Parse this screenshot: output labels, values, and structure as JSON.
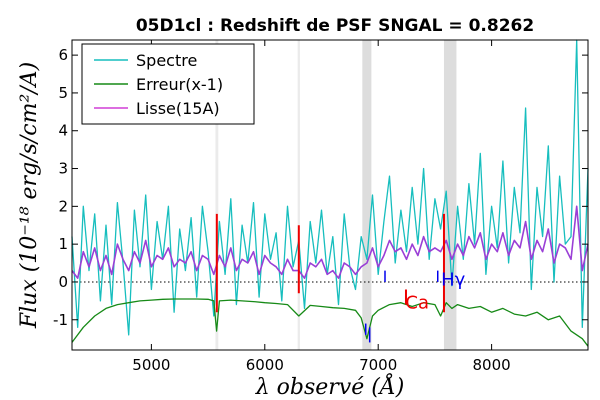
{
  "chart_data": {
    "type": "line",
    "title": "05D1cl : Redshift de PSF SNGAL = 0.8262",
    "xlabel": "λ observé (Å)",
    "ylabel": "Flux (10⁻¹⁸ erg/s/cm²/A)",
    "xlim": [
      4300,
      8850
    ],
    "ylim": [
      -1.8,
      6.4
    ],
    "xticks": [
      5000,
      6000,
      7000,
      8000
    ],
    "yticks": [
      -1,
      0,
      1,
      2,
      3,
      4,
      5,
      6
    ],
    "grid": false,
    "legend_position": "top-left",
    "zero_line": true,
    "colors": {
      "spectre": "#17bebe",
      "erreur": "#178a17",
      "lisse": "#9a3fd6",
      "sky_band": "#dddddd",
      "line_marker": "#0000ee",
      "sky_line": "#ee0000"
    },
    "series": [
      {
        "name": "Spectre",
        "color": "#17bebe",
        "x": [
          4300,
          4350,
          4400,
          4450,
          4500,
          4550,
          4600,
          4650,
          4700,
          4750,
          4800,
          4850,
          4900,
          4950,
          5000,
          5050,
          5100,
          5150,
          5200,
          5250,
          5300,
          5350,
          5400,
          5450,
          5500,
          5550,
          5600,
          5650,
          5700,
          5750,
          5800,
          5850,
          5900,
          5950,
          6000,
          6050,
          6100,
          6150,
          6200,
          6250,
          6300,
          6350,
          6400,
          6450,
          6500,
          6550,
          6600,
          6650,
          6700,
          6750,
          6800,
          6850,
          6900,
          6950,
          7000,
          7050,
          7100,
          7150,
          7200,
          7250,
          7300,
          7350,
          7400,
          7450,
          7500,
          7550,
          7600,
          7650,
          7700,
          7750,
          7800,
          7850,
          7900,
          7950,
          8000,
          8050,
          8100,
          8150,
          8200,
          8250,
          8300,
          8350,
          8400,
          8450,
          8500,
          8550,
          8600,
          8650,
          8700,
          8750,
          8800,
          8850
        ],
        "y": [
          1.2,
          -1.2,
          2.0,
          0.3,
          1.8,
          -0.5,
          1.5,
          -0.6,
          2.1,
          0.5,
          -1.4,
          1.9,
          0.4,
          2.3,
          -0.2,
          1.6,
          0.6,
          2.0,
          -0.8,
          1.4,
          0.3,
          1.7,
          -0.4,
          2.0,
          0.8,
          -0.9,
          1.6,
          0.2,
          2.2,
          -0.6,
          1.5,
          0.5,
          2.1,
          -0.4,
          1.8,
          0.6,
          1.3,
          -0.5,
          2.0,
          0.4,
          1.1,
          -0.7,
          1.6,
          0.5,
          1.9,
          0.2,
          1.2,
          -0.6,
          1.8,
          0.4,
          -0.2,
          1.2,
          0.6,
          2.3,
          0.2,
          1.6,
          2.8,
          0.5,
          1.9,
          0.8,
          2.5,
          1.0,
          3.0,
          0.6,
          2.2,
          1.4,
          2.4,
          -0.1,
          2.0,
          0.6,
          2.6,
          1.0,
          3.4,
          0.2,
          2.0,
          0.9,
          3.2,
          0.5,
          2.5,
          1.3,
          4.6,
          -0.2,
          2.5,
          1.2,
          3.6,
          0.0,
          2.8,
          1.0,
          1.2,
          6.4,
          -1.2,
          3.0
        ]
      },
      {
        "name": "Erreur(x-1)",
        "color": "#178a17",
        "x": [
          4300,
          4400,
          4500,
          4600,
          4700,
          4800,
          4900,
          5000,
          5100,
          5200,
          5300,
          5400,
          5500,
          5550,
          5575,
          5600,
          5700,
          5800,
          5900,
          6000,
          6100,
          6200,
          6300,
          6400,
          6500,
          6600,
          6700,
          6800,
          6850,
          6900,
          6950,
          7000,
          7100,
          7200,
          7300,
          7400,
          7500,
          7550,
          7600,
          7650,
          7700,
          7800,
          7900,
          8000,
          8100,
          8200,
          8300,
          8400,
          8500,
          8600,
          8700,
          8800,
          8850
        ],
        "y": [
          -1.6,
          -1.2,
          -0.9,
          -0.7,
          -0.6,
          -0.55,
          -0.5,
          -0.48,
          -0.46,
          -0.45,
          -0.45,
          -0.45,
          -0.46,
          -0.5,
          -1.3,
          -0.5,
          -0.48,
          -0.5,
          -0.52,
          -0.55,
          -0.57,
          -0.6,
          -0.9,
          -0.62,
          -0.65,
          -0.68,
          -0.7,
          -0.75,
          -0.95,
          -1.5,
          -0.9,
          -0.75,
          -0.6,
          -0.55,
          -0.65,
          -0.55,
          -0.6,
          -0.9,
          -0.55,
          -0.7,
          -0.6,
          -0.7,
          -0.65,
          -0.8,
          -0.7,
          -0.85,
          -0.9,
          -0.8,
          -1.0,
          -0.9,
          -1.3,
          -1.5,
          -1.7
        ]
      },
      {
        "name": "Lisse(15A)",
        "color": "#9a3fd6",
        "x": [
          4300,
          4350,
          4400,
          4450,
          4500,
          4550,
          4600,
          4650,
          4700,
          4750,
          4800,
          4850,
          4900,
          4950,
          5000,
          5050,
          5100,
          5150,
          5200,
          5250,
          5300,
          5350,
          5400,
          5450,
          5500,
          5550,
          5600,
          5650,
          5700,
          5750,
          5800,
          5850,
          5900,
          5950,
          6000,
          6050,
          6100,
          6150,
          6200,
          6250,
          6300,
          6350,
          6400,
          6450,
          6500,
          6550,
          6600,
          6650,
          6700,
          6750,
          6800,
          6850,
          6900,
          6950,
          7000,
          7050,
          7100,
          7150,
          7200,
          7250,
          7300,
          7350,
          7400,
          7450,
          7500,
          7550,
          7600,
          7650,
          7700,
          7750,
          7800,
          7850,
          7900,
          7950,
          8000,
          8050,
          8100,
          8150,
          8200,
          8250,
          8300,
          8350,
          8400,
          8450,
          8500,
          8550,
          8600,
          8650,
          8700,
          8750,
          8800,
          8850
        ],
        "y": [
          0.3,
          0.1,
          0.8,
          0.4,
          0.9,
          0.3,
          0.7,
          0.2,
          1.0,
          0.6,
          0.3,
          0.8,
          0.5,
          1.1,
          0.4,
          0.7,
          0.6,
          0.9,
          0.4,
          0.6,
          0.5,
          0.8,
          0.3,
          0.7,
          0.6,
          0.2,
          0.7,
          0.4,
          0.9,
          0.3,
          0.6,
          0.5,
          0.8,
          0.2,
          0.7,
          0.5,
          0.4,
          0.2,
          0.6,
          0.3,
          0.3,
          0.1,
          0.5,
          0.4,
          0.6,
          0.2,
          0.3,
          0.1,
          0.5,
          0.4,
          0.2,
          0.4,
          0.5,
          0.9,
          0.4,
          0.7,
          1.1,
          0.8,
          0.9,
          0.6,
          1.0,
          0.7,
          1.2,
          0.8,
          0.9,
          0.8,
          1.1,
          0.6,
          1.0,
          0.7,
          1.2,
          0.9,
          1.3,
          0.6,
          1.0,
          0.8,
          1.3,
          0.7,
          1.1,
          0.9,
          1.6,
          0.6,
          1.1,
          0.8,
          1.4,
          0.5,
          1.0,
          0.9,
          0.6,
          2.0,
          0.3,
          1.0
        ]
      }
    ],
    "sky_bands": [
      {
        "x0": 5565,
        "x1": 5590,
        "color": "#ebebeb"
      },
      {
        "x0": 6290,
        "x1": 6310,
        "color": "#ebebeb"
      },
      {
        "x0": 6860,
        "x1": 6940,
        "color": "#dddddd"
      },
      {
        "x0": 7580,
        "x1": 7690,
        "color": "#dddddd"
      }
    ],
    "sky_line_spikes": [
      {
        "x": 5577,
        "y0": -0.8,
        "y1": 1.8
      },
      {
        "x": 6300,
        "y0": -0.3,
        "y1": 1.5
      },
      {
        "x": 7245,
        "y0": -0.6,
        "y1": -0.2
      },
      {
        "x": 7580,
        "y0": -0.8,
        "y1": 1.8
      }
    ],
    "line_markers": [
      {
        "label": "",
        "x": 6890,
        "y0": -1.1,
        "y1": -1.4
      },
      {
        "label": "",
        "x": 6925,
        "y0": -1.2,
        "y1": -1.6
      },
      {
        "label": "",
        "x": 7060,
        "y0": 0.0,
        "y1": 0.3
      },
      {
        "label": "Hγ",
        "x": 7525,
        "y0": 0.0,
        "y1": 0.3
      }
    ],
    "annotations": [
      {
        "text": "Ca",
        "x": 7240,
        "y": -0.7,
        "color": "#ee0000"
      },
      {
        "text": "Hγ",
        "x": 7555,
        "y": -0.1,
        "color": "#0000ee"
      }
    ]
  }
}
